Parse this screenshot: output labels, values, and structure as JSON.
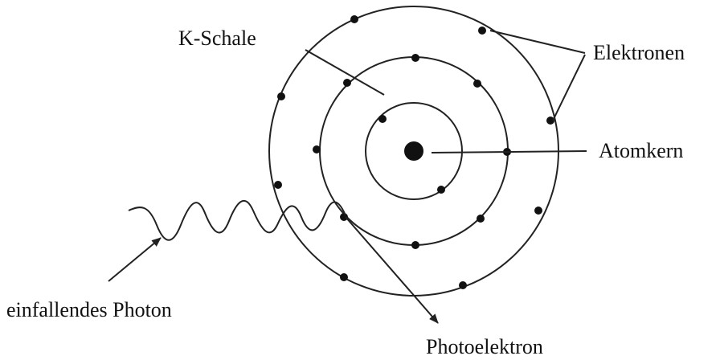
{
  "labels": {
    "k_shell": "K-Schale",
    "electrons": "Elektronen",
    "nucleus": "Atomkern",
    "photon": "einfallendes Photon",
    "photoelectron": "Photoelektron"
  }
}
